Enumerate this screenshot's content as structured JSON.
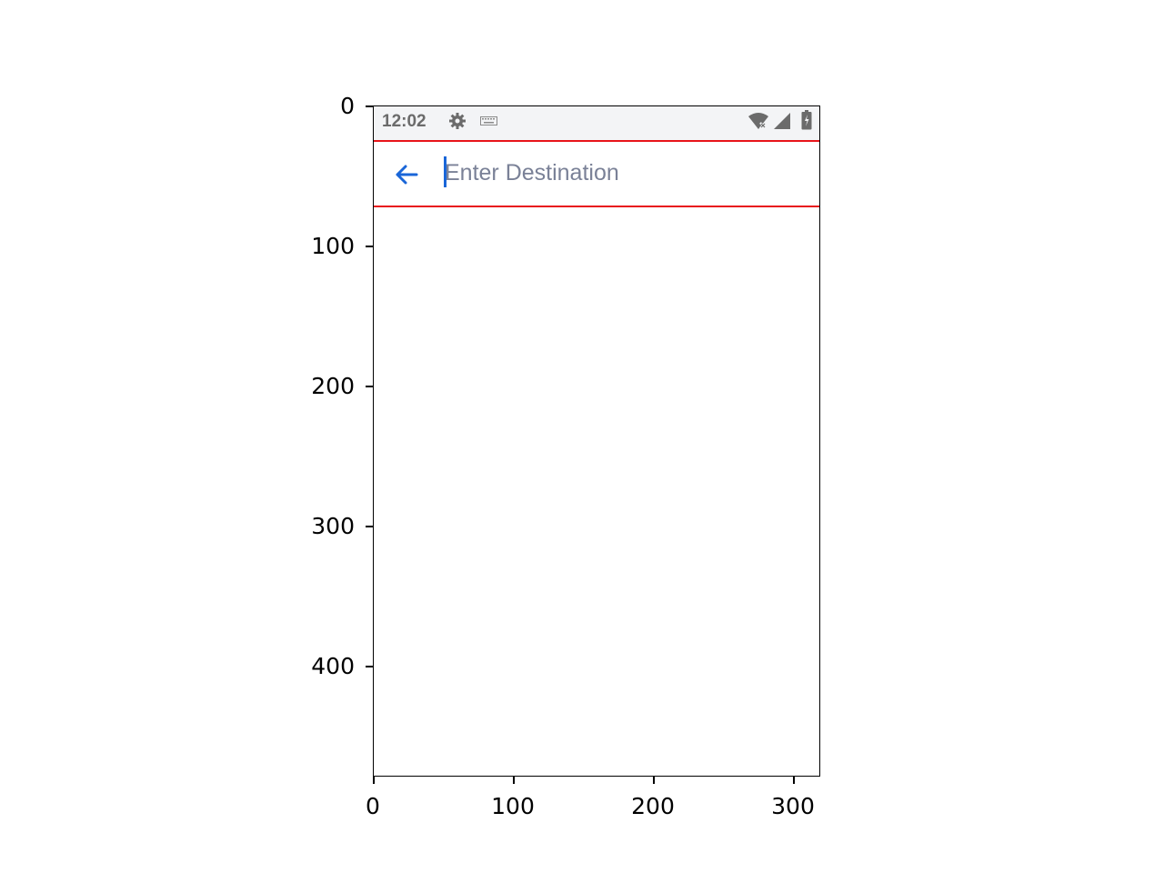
{
  "status_bar": {
    "time": "12:02",
    "icons": [
      "gear-icon",
      "keyboard-icon",
      "wifi-icon",
      "signal-icon",
      "battery-icon"
    ]
  },
  "search": {
    "placeholder": "Enter Destination",
    "value": "",
    "back_icon": "arrow-left-icon"
  },
  "colors": {
    "accent": "#1a66d8",
    "highlight_box": "#e8141a",
    "status_bar_bg": "#f3f4f6",
    "placeholder": "#7a8197"
  },
  "axes": {
    "y_ticks": [
      "0",
      "100",
      "200",
      "300",
      "400"
    ],
    "x_ticks": [
      "0",
      "100",
      "200",
      "300"
    ]
  }
}
